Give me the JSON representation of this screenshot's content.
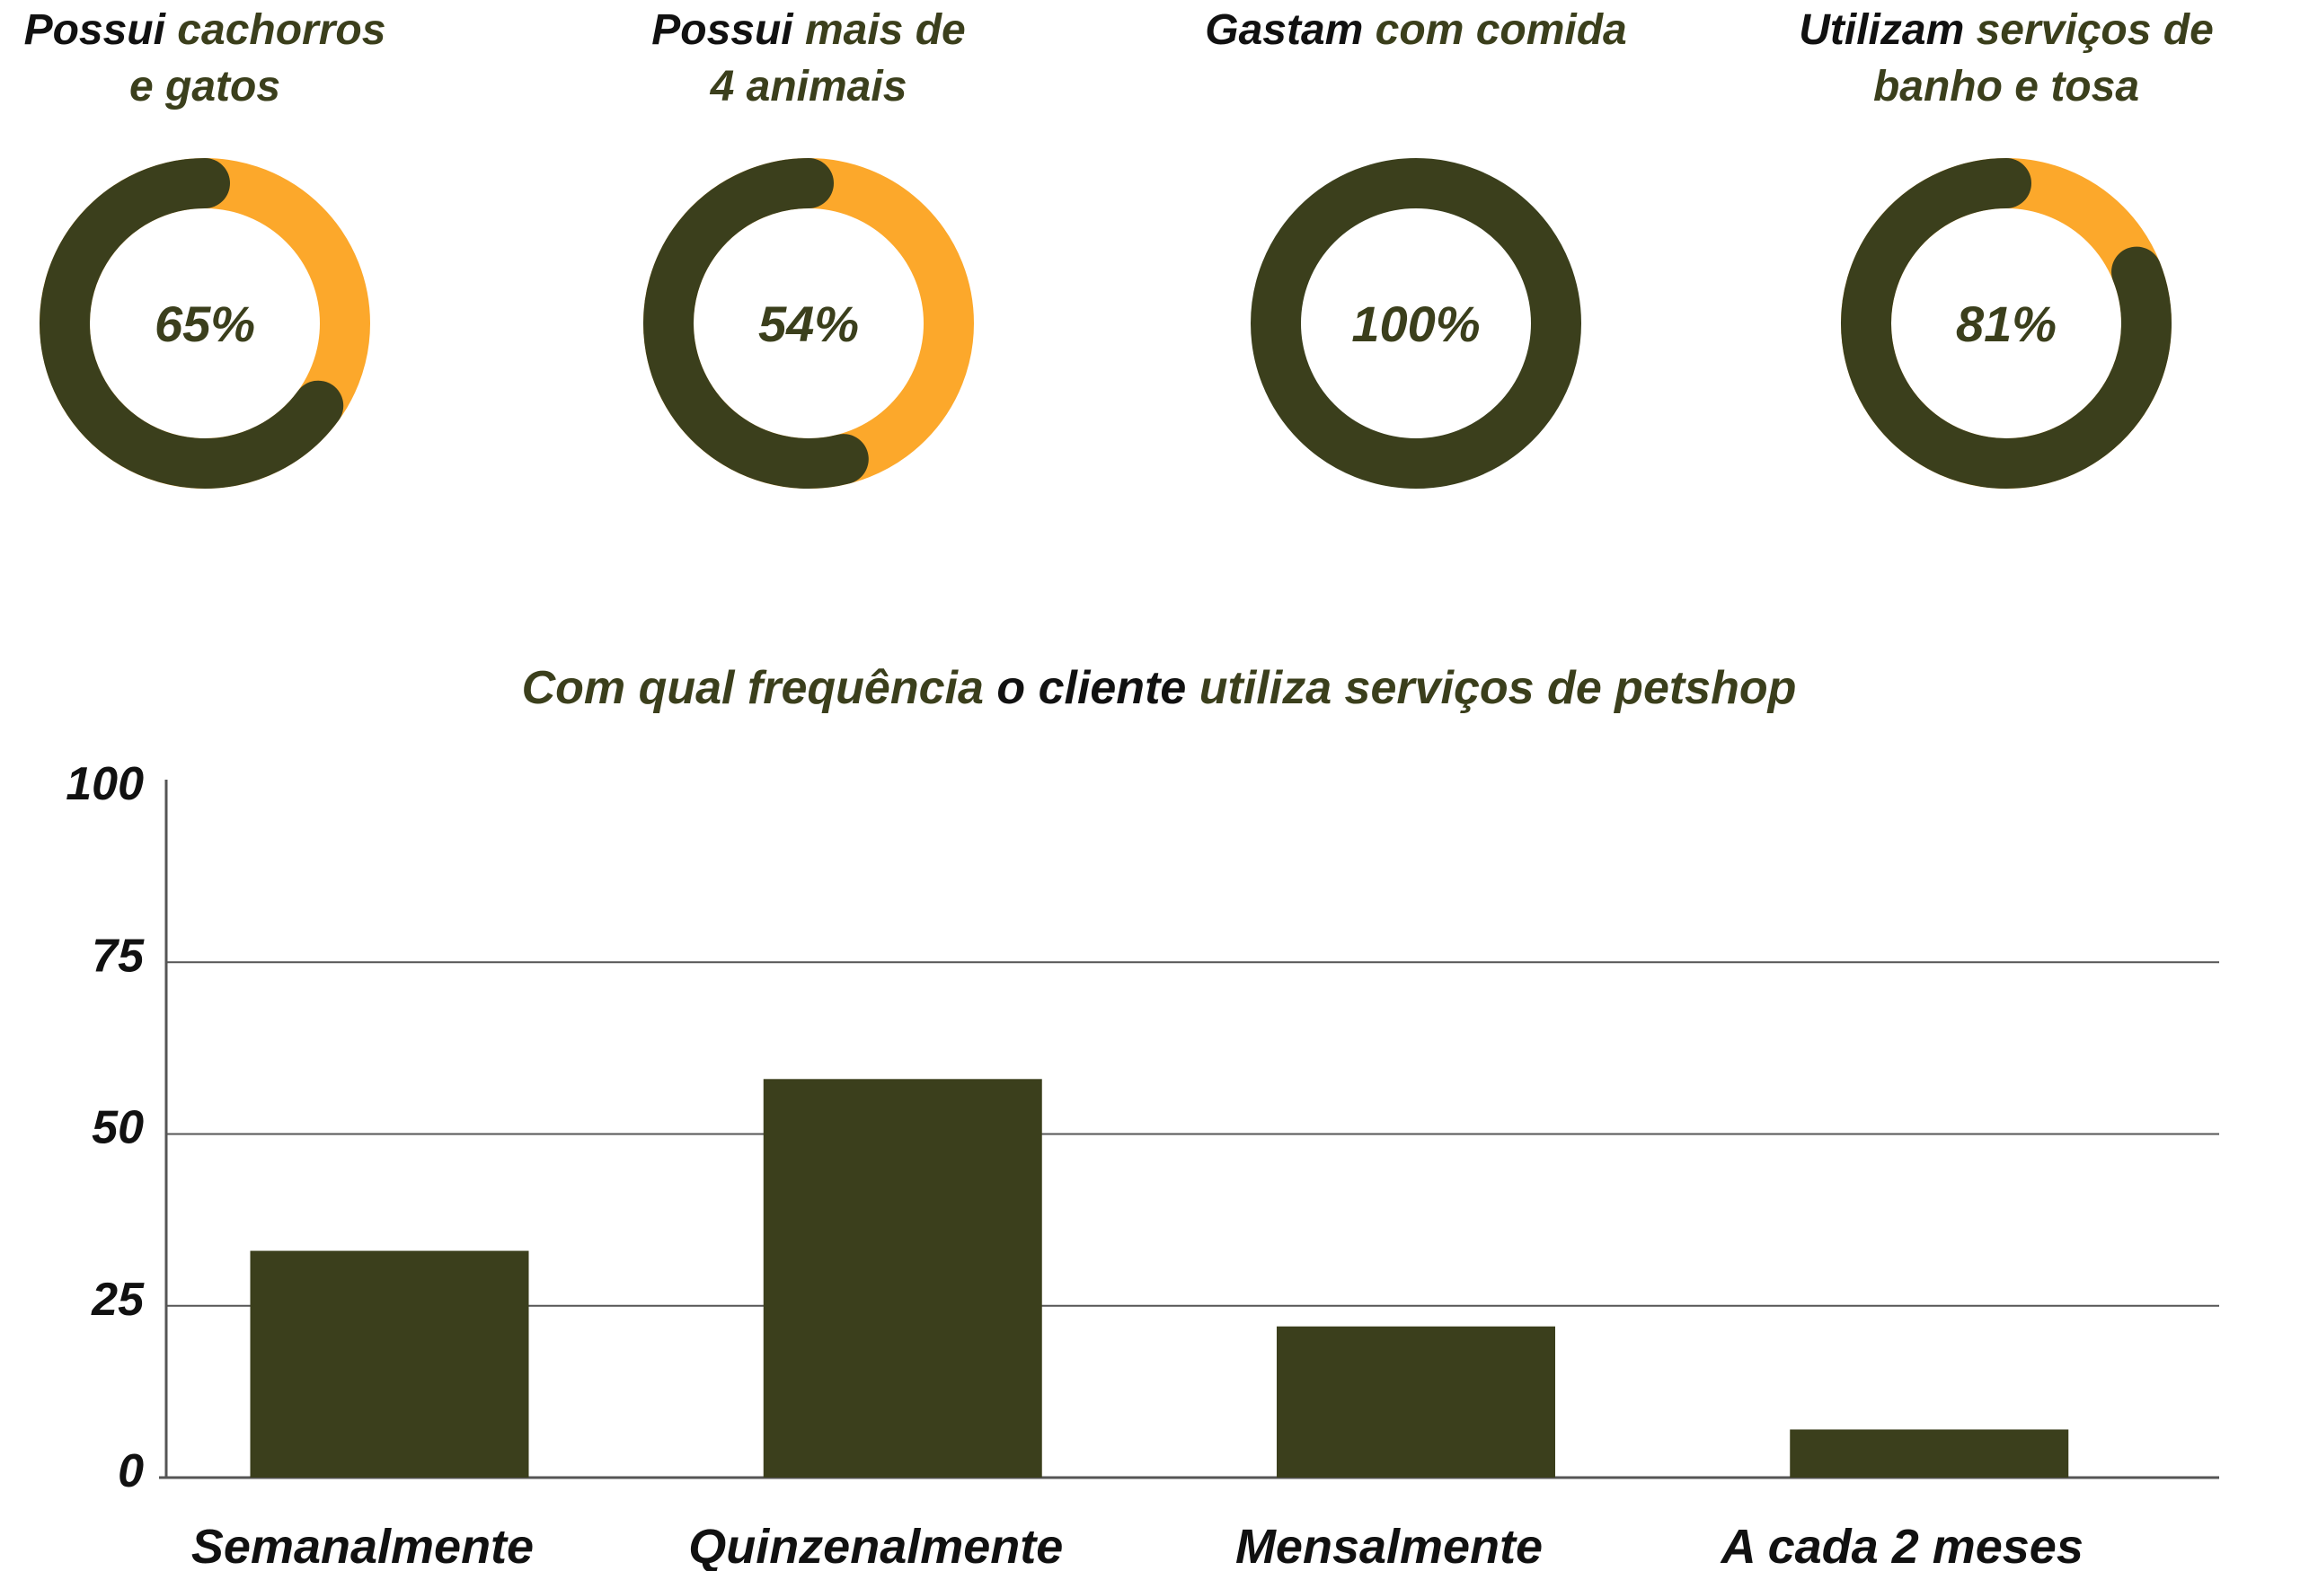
{
  "colors": {
    "dark": "#3b3f1c",
    "accent": "#fca82b",
    "text": "#111111",
    "grid": "#555555"
  },
  "kpis": [
    {
      "title_lines": [
        [
          {
            "text": "Possui ",
            "tone": "dark"
          },
          {
            "text": "cachorros",
            "tone": "olive"
          }
        ],
        [
          {
            "text": "e gatos",
            "tone": "olive"
          }
        ]
      ],
      "percent_label": "65%",
      "value": 65
    },
    {
      "title_lines": [
        [
          {
            "text": "Possui ",
            "tone": "dark"
          },
          {
            "text": "mais de",
            "tone": "olive"
          }
        ],
        [
          {
            "text": "4 animais",
            "tone": "olive"
          }
        ]
      ],
      "percent_label": "54%",
      "value": 54
    },
    {
      "title_lines": [
        [
          {
            "text": "Gastam ",
            "tone": "dark"
          },
          {
            "text": "com comida",
            "tone": "olive"
          }
        ]
      ],
      "percent_label": "100%",
      "value": 100
    },
    {
      "title_lines": [
        [
          {
            "text": "Utilizam ",
            "tone": "dark"
          },
          {
            "text": "serviços de",
            "tone": "olive"
          }
        ],
        [
          {
            "text": "banho e tosa",
            "tone": "olive"
          }
        ]
      ],
      "percent_label": "81%",
      "value": 81
    }
  ],
  "chart_title": [
    {
      "text": "Com qual frequência ",
      "tone": "olive"
    },
    {
      "text": "o cliente ",
      "tone": "dark"
    },
    {
      "text": "utiliza serviços de petshop",
      "tone": "olive"
    }
  ],
  "chart_data": {
    "type": "bar",
    "categories": [
      "Semanalmente",
      "Quinzenalmente",
      "Mensalmente",
      "A cada 2 meses"
    ],
    "values": [
      33,
      58,
      22,
      7
    ],
    "ylim": [
      0,
      100
    ],
    "yticks": [
      "0",
      "25",
      "50",
      "75",
      "100"
    ],
    "grid": true,
    "bar_color": "#3b3f1c"
  }
}
